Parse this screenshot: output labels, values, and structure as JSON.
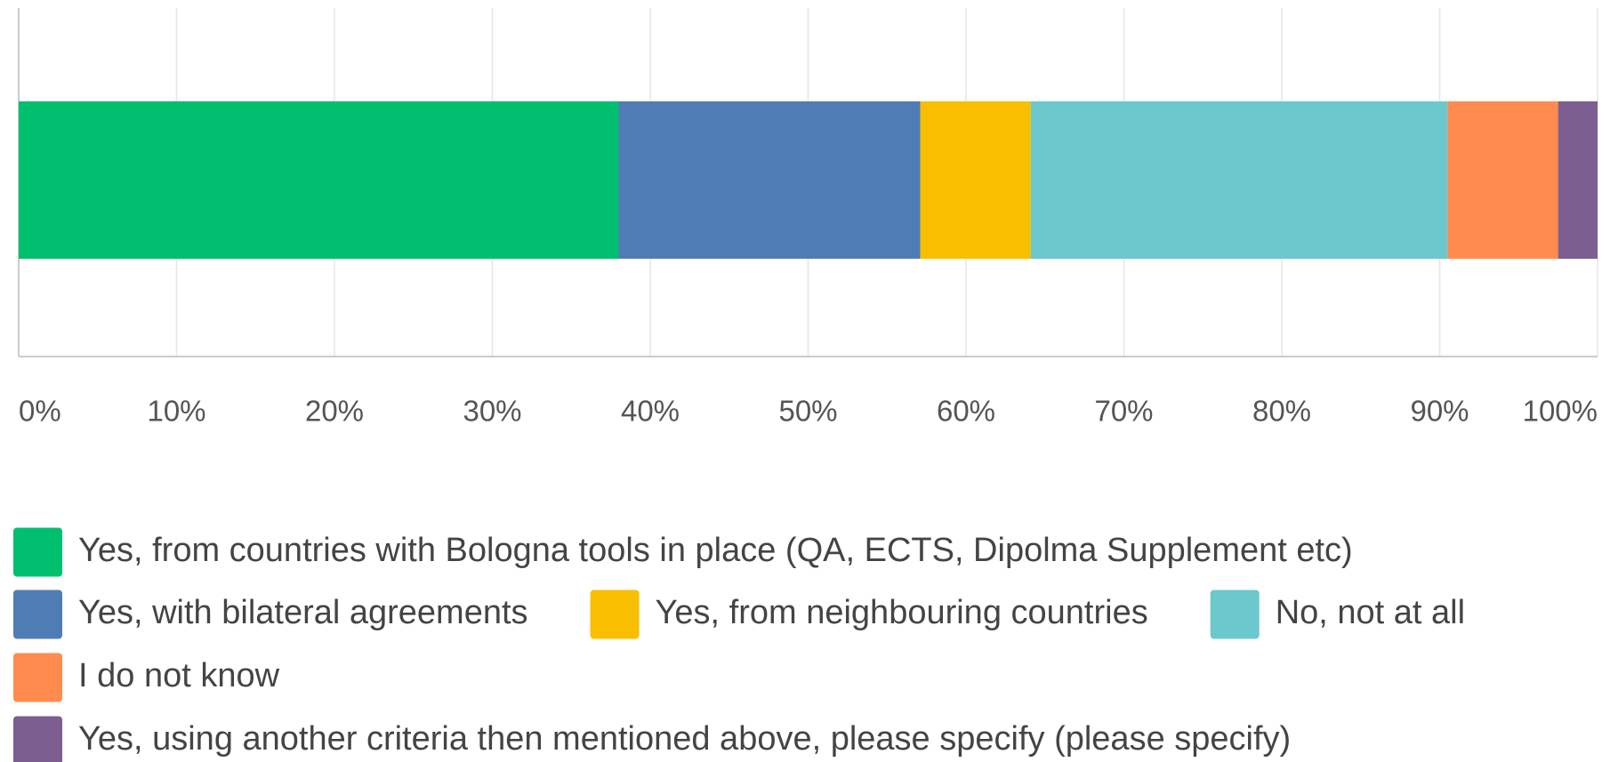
{
  "chart_data": {
    "type": "stacked-bar-horizontal",
    "categories": [
      null
    ],
    "series": [
      {
        "name": "Yes, from countries with Bologna tools in place (QA, ECTS, Dipolma Supplement etc)",
        "color": "#00bf6f",
        "values": [
          38.0
        ]
      },
      {
        "name": "Yes, with bilateral agreements",
        "color": "#507cb6",
        "values": [
          19.1
        ]
      },
      {
        "name": "Yes, from neighbouring countries",
        "color": "#f9be00",
        "values": [
          7.0
        ]
      },
      {
        "name": "No, not at all",
        "color": "#6bc8cd",
        "values": [
          26.4
        ]
      },
      {
        "name": "I do not know",
        "color": "#ff8b4f",
        "values": [
          7.0
        ]
      },
      {
        "name": "Yes, using another criteria then mentioned above, please specify (please specify)",
        "color": "#7d5e90",
        "values": [
          2.5
        ]
      }
    ],
    "xlim": [
      0,
      100
    ],
    "xticks": [
      {
        "value": 0,
        "label": "0%"
      },
      {
        "value": 10,
        "label": "10%"
      },
      {
        "value": 20,
        "label": "20%"
      },
      {
        "value": 30,
        "label": "30%"
      },
      {
        "value": 40,
        "label": "40%"
      },
      {
        "value": 50,
        "label": "50%"
      },
      {
        "value": 60,
        "label": "60%"
      },
      {
        "value": 70,
        "label": "70%"
      },
      {
        "value": 80,
        "label": "80%"
      },
      {
        "value": 90,
        "label": "90%"
      },
      {
        "value": 100,
        "label": "100%"
      }
    ],
    "grid": true,
    "legend": "bottom"
  }
}
